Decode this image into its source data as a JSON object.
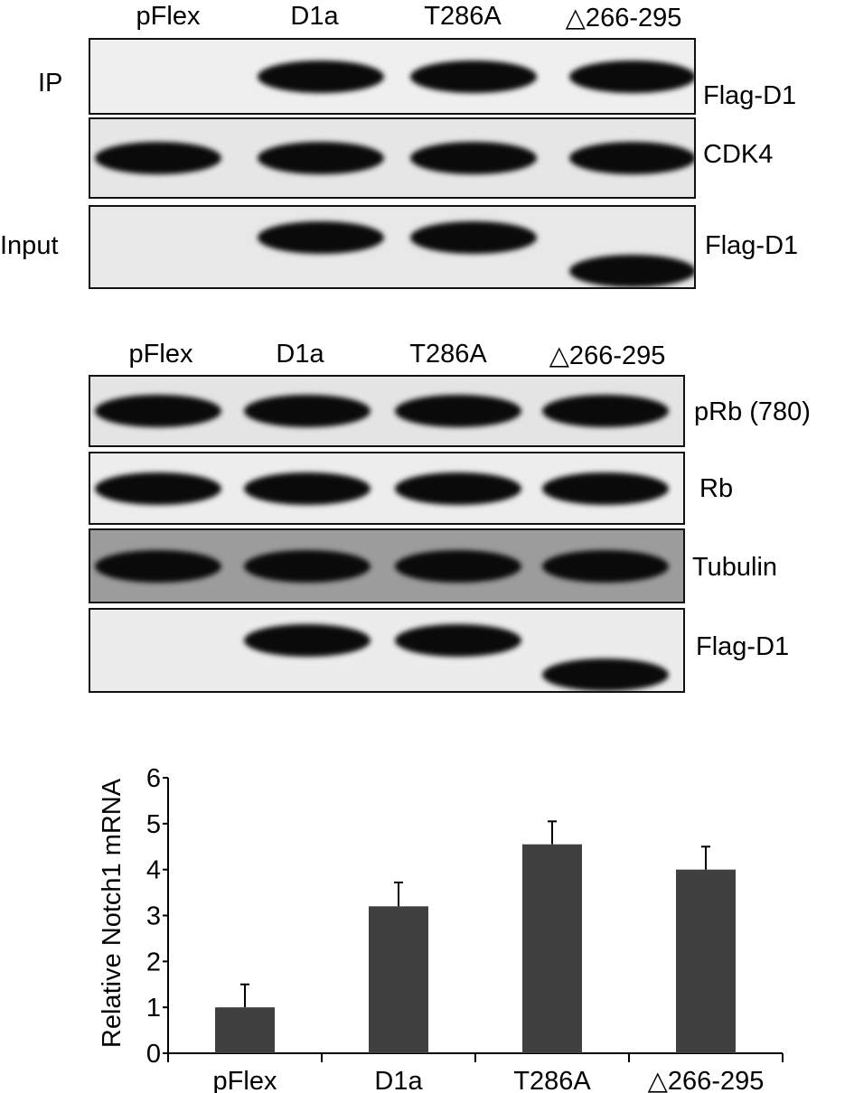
{
  "lanes": [
    "pFlex",
    "D1a",
    "T286A",
    "△266-295"
  ],
  "panel1": {
    "group_labels": {
      "ip": "IP",
      "input": "Input"
    },
    "blots": [
      {
        "label": "Flag-D1",
        "bands": [
          false,
          true,
          true,
          true
        ],
        "shifted_last": false,
        "background": "#efefef"
      },
      {
        "label": "CDK4",
        "bands": [
          true,
          true,
          true,
          true
        ],
        "shifted_last": false,
        "background": "#e6e6e6"
      },
      {
        "label": "Flag-D1",
        "bands": [
          false,
          true,
          true,
          true
        ],
        "shifted_last": true,
        "background": "#e8e8e8"
      }
    ]
  },
  "panel2": {
    "blots": [
      {
        "label": "pRb (780)",
        "bands": [
          true,
          true,
          true,
          true
        ],
        "shifted_last": false,
        "background": "#e4e4e4"
      },
      {
        "label": "Rb",
        "bands": [
          true,
          true,
          true,
          true
        ],
        "shifted_last": false,
        "background": "#ededed"
      },
      {
        "label": "Tubulin",
        "bands": [
          true,
          true,
          true,
          true
        ],
        "shifted_last": false,
        "background": "#9c9c9c"
      },
      {
        "label": "Flag-D1",
        "bands": [
          false,
          true,
          true,
          true
        ],
        "shifted_last": true,
        "background": "#ececec"
      }
    ]
  },
  "chart_data": {
    "type": "bar",
    "categories": [
      "pFlex",
      "D1a",
      "T286A",
      "△266-295"
    ],
    "values": [
      1.0,
      3.2,
      4.55,
      4.0
    ],
    "error_upper": [
      0.5,
      0.52,
      0.5,
      0.5
    ],
    "title": "",
    "xlabel": "",
    "ylabel": "Relative Notch1 mRNA",
    "ylim": [
      0,
      6
    ],
    "yticks": [
      "0",
      "1",
      "2",
      "3",
      "4",
      "5",
      "6"
    ],
    "grid": false,
    "bar_color": "#404040"
  }
}
